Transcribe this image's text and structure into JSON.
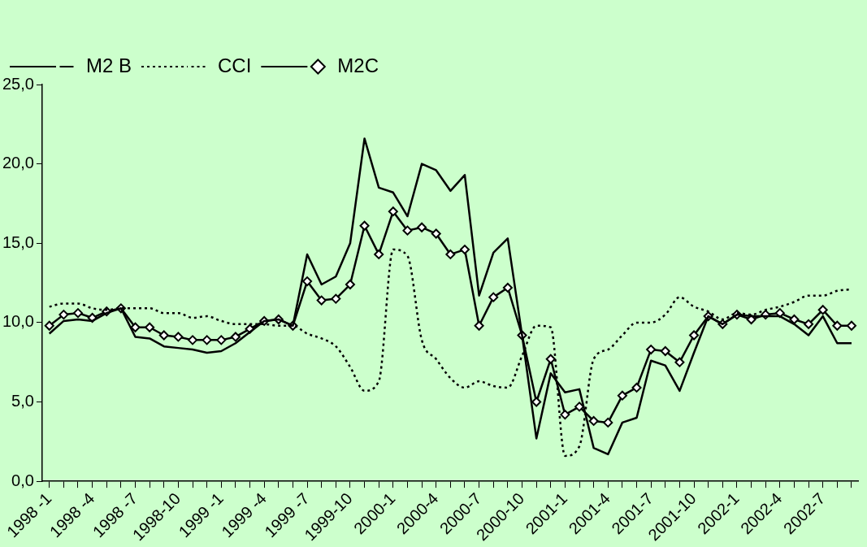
{
  "chart_data": {
    "type": "line",
    "categories": [
      "1998 -1",
      null,
      null,
      "1998 -4",
      null,
      null,
      "1998 -7",
      null,
      null,
      "1998-10",
      null,
      null,
      "1999 -1",
      null,
      null,
      "1999 -4",
      null,
      null,
      "1999 -7",
      null,
      null,
      "1999-10",
      null,
      null,
      "2000-1",
      null,
      null,
      "2000-4",
      null,
      null,
      "2000-7",
      null,
      null,
      "2000-10",
      null,
      null,
      "2001-1",
      null,
      null,
      "2001-4",
      null,
      null,
      "2001-7",
      null,
      null,
      "2001-10",
      null,
      null,
      "2002-1",
      null,
      null,
      "2002-4",
      null,
      null,
      "2002-7",
      null,
      null
    ],
    "series": [
      {
        "name": "M2 B",
        "color": "#000000",
        "marker": "none",
        "line_style": "solid",
        "values": [
          9.3,
          10.1,
          10.2,
          10.1,
          10.6,
          10.9,
          9.1,
          9.0,
          8.5,
          8.4,
          8.3,
          8.1,
          8.2,
          8.7,
          9.4,
          10.1,
          10.2,
          9.8,
          14.3,
          12.4,
          12.9,
          15.0,
          21.6,
          18.5,
          18.2,
          16.7,
          20.0,
          19.6,
          18.3,
          19.3,
          11.7,
          14.4,
          15.3,
          9.2,
          2.7,
          6.8,
          5.6,
          5.8,
          2.1,
          1.7,
          3.7,
          4.0,
          7.6,
          7.3,
          5.7,
          8.1,
          10.4,
          9.9,
          10.5,
          10.4,
          10.4,
          10.4,
          9.9,
          9.2,
          10.4,
          8.7,
          8.7
        ]
      },
      {
        "name": "CCI",
        "color": "#000000",
        "marker": "none",
        "line_style": "dotted",
        "values": [
          11.0,
          11.2,
          11.2,
          10.9,
          10.8,
          10.9,
          10.9,
          10.9,
          10.6,
          10.6,
          10.3,
          10.4,
          10.1,
          9.9,
          9.9,
          9.9,
          9.8,
          9.8,
          9.3,
          9.0,
          8.5,
          7.2,
          5.7,
          6.3,
          14.6,
          14.2,
          8.9,
          7.7,
          6.5,
          5.9,
          6.3,
          6.0,
          5.9,
          7.9,
          9.8,
          9.7,
          1.6,
          2.2,
          7.7,
          8.3,
          9.2,
          10.0,
          10.0,
          10.5,
          11.6,
          11.0,
          10.7,
          10.2,
          10.6,
          10.5,
          10.8,
          11.0,
          11.3,
          11.7,
          11.7,
          12.0,
          12.1
        ]
      },
      {
        "name": "M2C",
        "color": "#000000",
        "marker": "diamond",
        "line_style": "solid",
        "values": [
          9.8,
          10.5,
          10.6,
          10.3,
          10.7,
          10.9,
          9.7,
          9.7,
          9.2,
          9.1,
          8.9,
          8.9,
          8.9,
          9.1,
          9.6,
          10.1,
          10.2,
          9.8,
          12.6,
          11.4,
          11.5,
          12.4,
          16.1,
          14.3,
          17.0,
          15.8,
          16.0,
          15.6,
          14.3,
          14.6,
          9.8,
          11.6,
          12.2,
          9.2,
          5.0,
          7.7,
          4.2,
          4.7,
          3.8,
          3.7,
          5.4,
          5.9,
          8.3,
          8.2,
          7.5,
          9.2,
          10.4,
          9.9,
          10.5,
          10.2,
          10.5,
          10.6,
          10.2,
          9.9,
          10.8,
          9.8,
          9.8
        ]
      }
    ],
    "ylim": [
      0,
      25
    ],
    "yticks": [
      {
        "value": 0,
        "label": "0,0"
      },
      {
        "value": 5,
        "label": "5,0"
      },
      {
        "value": 10,
        "label": "10,0"
      },
      {
        "value": 15,
        "label": "15,0"
      },
      {
        "value": 20,
        "label": "20,0"
      },
      {
        "value": 25,
        "label": "25,0"
      }
    ],
    "grid": false,
    "legend": "top"
  }
}
